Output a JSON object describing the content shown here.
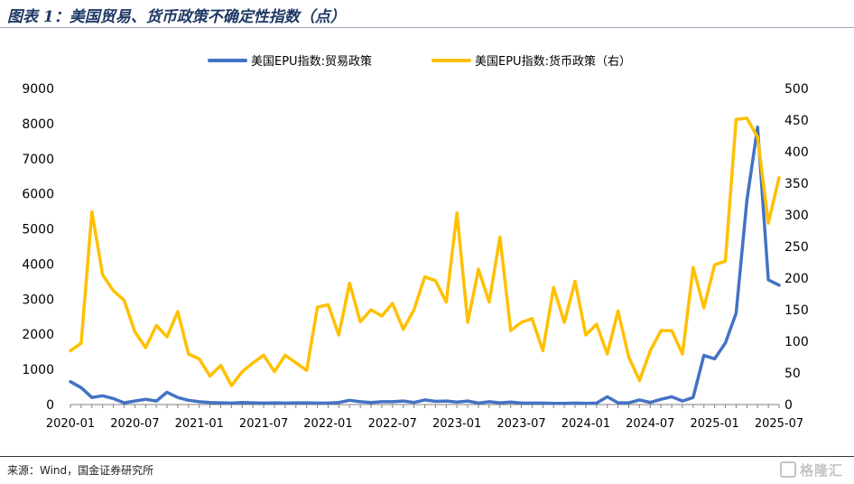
{
  "header": {
    "title": "图表 1：美国贸易、货币政策不确定性指数（点）"
  },
  "footer": {
    "source": "来源：Wind，国金证券研究所",
    "watermark": "格隆汇"
  },
  "chart_data": {
    "type": "line",
    "x": [
      "2020-01",
      "2020-02",
      "2020-03",
      "2020-04",
      "2020-05",
      "2020-06",
      "2020-07",
      "2020-08",
      "2020-09",
      "2020-10",
      "2020-11",
      "2020-12",
      "2021-01",
      "2021-02",
      "2021-03",
      "2021-04",
      "2021-05",
      "2021-06",
      "2021-07",
      "2021-08",
      "2021-09",
      "2021-10",
      "2021-11",
      "2021-12",
      "2022-01",
      "2022-02",
      "2022-03",
      "2022-04",
      "2022-05",
      "2022-06",
      "2022-07",
      "2022-08",
      "2022-09",
      "2022-10",
      "2022-11",
      "2022-12",
      "2023-01",
      "2023-02",
      "2023-03",
      "2023-04",
      "2023-05",
      "2023-06",
      "2023-07",
      "2023-08",
      "2023-09",
      "2023-10",
      "2023-11",
      "2023-12",
      "2024-01",
      "2024-02",
      "2024-03",
      "2024-04",
      "2024-05",
      "2024-06",
      "2024-07",
      "2024-08",
      "2024-09",
      "2024-10",
      "2024-11",
      "2024-12",
      "2025-01",
      "2025-02",
      "2025-03",
      "2025-04",
      "2025-05",
      "2025-06",
      "2025-07"
    ],
    "x_tick_labels": [
      "2020-01",
      "2020-07",
      "2021-01",
      "2021-07",
      "2022-01",
      "2022-07",
      "2023-01",
      "2023-07",
      "2024-01",
      "2024-07",
      "2025-01",
      "2025-07"
    ],
    "series": [
      {
        "name": "美国EPU指数:贸易政策",
        "axis": "left",
        "color": "#4472c4",
        "values": [
          650,
          480,
          200,
          250,
          170,
          50,
          100,
          150,
          100,
          350,
          200,
          120,
          80,
          60,
          50,
          40,
          60,
          50,
          40,
          50,
          40,
          50,
          50,
          40,
          40,
          60,
          120,
          80,
          60,
          80,
          80,
          100,
          60,
          130,
          90,
          100,
          70,
          100,
          40,
          80,
          50,
          70,
          40,
          40,
          40,
          30,
          30,
          40,
          30,
          40,
          220,
          50,
          50,
          130,
          60,
          150,
          220,
          100,
          200,
          1400,
          1300,
          1750,
          2600,
          5800,
          7900,
          3550,
          3400
        ]
      },
      {
        "name": "美国EPU指数:货币政策（右）",
        "axis": "right",
        "color": "#ffc000",
        "values": [
          85,
          97,
          305,
          205,
          180,
          165,
          115,
          90,
          125,
          107,
          147,
          80,
          72,
          45,
          62,
          30,
          52,
          66,
          78,
          52,
          78,
          66,
          54,
          154,
          158,
          110,
          192,
          131,
          150,
          140,
          160,
          119,
          150,
          202,
          196,
          162,
          303,
          130,
          214,
          162,
          265,
          117,
          130,
          136,
          85,
          185,
          130,
          195,
          110,
          127,
          80,
          148,
          75,
          38,
          85,
          117,
          117,
          80,
          217,
          153,
          221,
          227,
          451,
          453,
          423,
          287,
          359
        ]
      }
    ],
    "y_left": {
      "ylim": [
        0,
        9000
      ],
      "ticks": [
        0,
        1000,
        2000,
        3000,
        4000,
        5000,
        6000,
        7000,
        8000,
        9000
      ]
    },
    "y_right": {
      "ylim": [
        0,
        500
      ],
      "ticks": [
        0,
        50,
        100,
        150,
        200,
        250,
        300,
        350,
        400,
        450,
        500
      ]
    },
    "legend": {
      "placement": "top-center"
    },
    "grid": false
  }
}
